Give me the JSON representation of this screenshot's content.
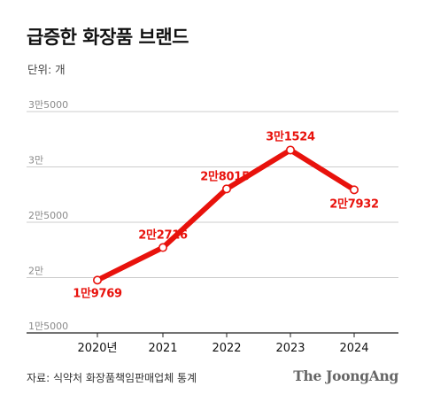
{
  "title": "급증한 화장품 브랜드",
  "unit_label": "단위: 개",
  "source": "자료: 식약처 화장품책임판매업체 통계",
  "logo": "The JoongAng",
  "colors": {
    "line": "#e8120c",
    "label": "#e8120c",
    "grid": "#cccccc",
    "axis": "#222222",
    "marker_fill": "#ffffff"
  },
  "chart_data": {
    "type": "line",
    "categories": [
      "2020년",
      "2021",
      "2022",
      "2023",
      "2024"
    ],
    "values": [
      19769,
      22716,
      28015,
      31524,
      27932
    ],
    "data_labels": [
      "1만9769",
      "2만2716",
      "2만8015",
      "3만1524",
      "2만7932"
    ],
    "ylim": [
      15000,
      35000
    ],
    "yticks": [
      15000,
      20000,
      25000,
      30000,
      35000
    ],
    "ytick_labels": [
      "1만5000",
      "2만",
      "2만5000",
      "3만",
      "3만5000"
    ],
    "grid": true,
    "markers": "hollow-circle"
  }
}
